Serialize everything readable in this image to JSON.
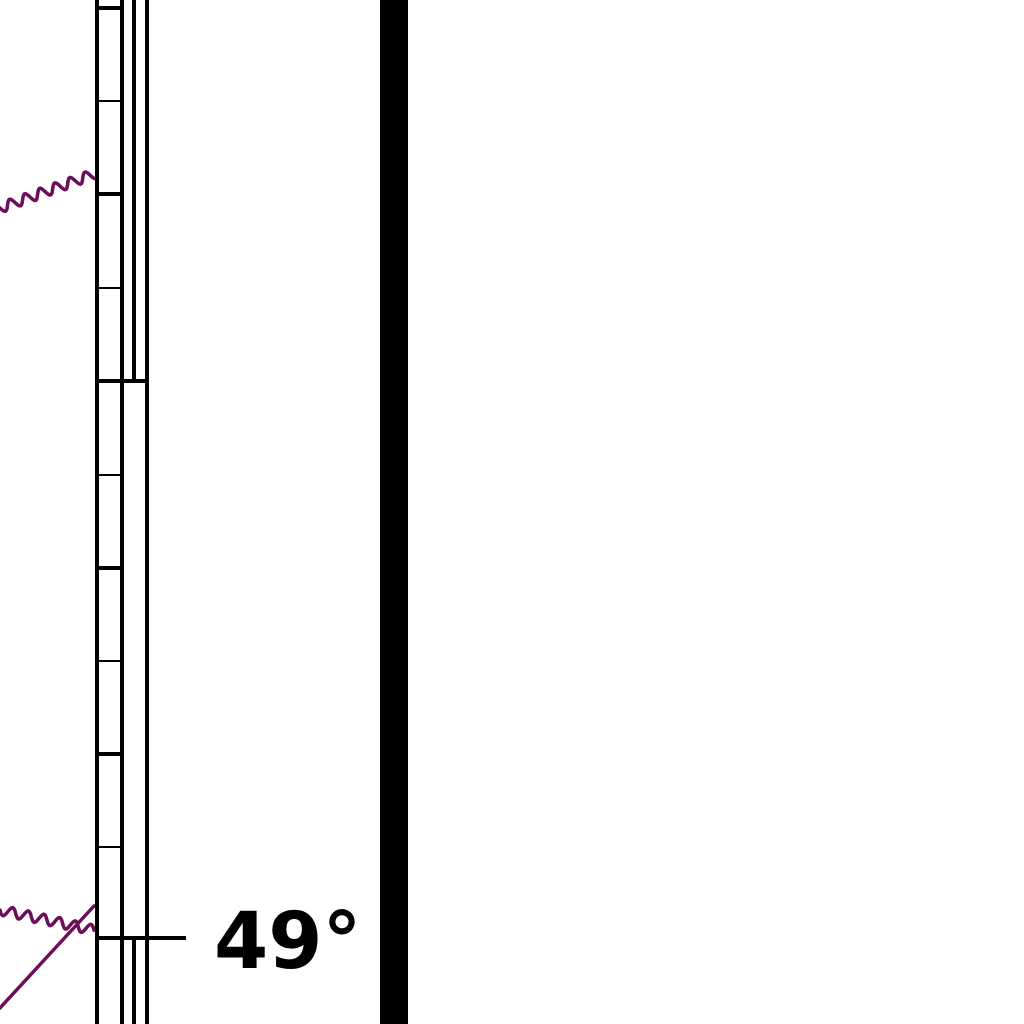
{
  "map": {
    "latitude_label": "49°",
    "colors": {
      "background": "#ffffff",
      "border": "#000000",
      "neatline": "#000000",
      "feature": "#6b0f5a"
    }
  }
}
